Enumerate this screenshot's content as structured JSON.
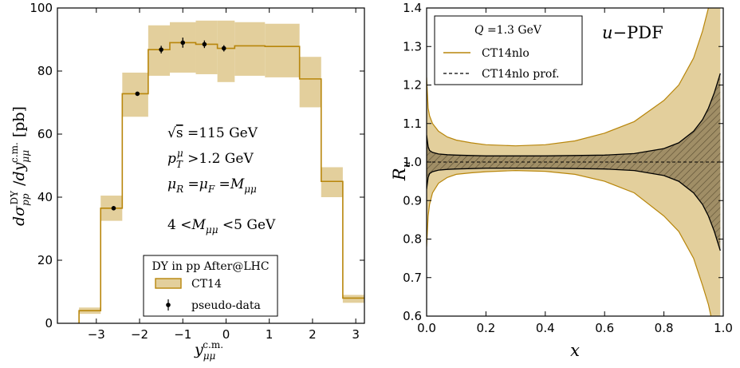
{
  "chart_data": [
    {
      "type": "line",
      "subtype": "histogram-step",
      "xlabel": "y_μμ^c.m.",
      "ylabel": "dσ_pp^DY / dy_μμ^c.m. [pb]",
      "xlim": [
        -3.9,
        3.2
      ],
      "ylim": [
        0,
        100
      ],
      "xticks": [
        -3,
        -2,
        -1,
        0,
        1,
        2,
        3
      ],
      "yticks": [
        0,
        20,
        40,
        60,
        80,
        100
      ],
      "grid": false,
      "legend_position": "bottom-right",
      "legend_title": "DY in pp After@LHC",
      "annotations": [
        "√s = 115 GeV",
        "p_T^μ > 1.2 GeV",
        "μ_R = μ_F = M_μμ",
        "4 < M_μμ < 5 GeV"
      ],
      "bins": [
        {
          "xlo": -3.4,
          "xhi": -2.9,
          "value": 4.0,
          "band": [
            3.0,
            5.0
          ]
        },
        {
          "xlo": -2.9,
          "xhi": -2.4,
          "value": 36.5,
          "band": [
            32.5,
            40.5
          ]
        },
        {
          "xlo": -2.4,
          "xhi": -1.8,
          "value": 72.8,
          "band": [
            65.5,
            79.5
          ]
        },
        {
          "xlo": -1.8,
          "xhi": -1.3,
          "value": 86.8,
          "band": [
            78.5,
            94.5
          ]
        },
        {
          "xlo": -1.3,
          "xhi": -0.7,
          "value": 89.0,
          "band": [
            79.5,
            95.5
          ]
        },
        {
          "xlo": -0.7,
          "xhi": -0.2,
          "value": 88.5,
          "band": [
            79.0,
            96.0
          ]
        },
        {
          "xlo": -0.2,
          "xhi": 0.2,
          "value": 87.2,
          "band": [
            76.5,
            96.0
          ]
        },
        {
          "xlo": 0.2,
          "xhi": 0.9,
          "value": 88.0,
          "band": [
            78.5,
            95.5
          ]
        },
        {
          "xlo": 0.9,
          "xhi": 1.7,
          "value": 87.8,
          "band": [
            78.0,
            95.0
          ]
        },
        {
          "xlo": 1.7,
          "xhi": 2.2,
          "value": 77.5,
          "band": [
            68.5,
            84.5
          ]
        },
        {
          "xlo": 2.2,
          "xhi": 2.7,
          "value": 45.0,
          "band": [
            40.0,
            49.5
          ]
        },
        {
          "xlo": 2.7,
          "xhi": 3.2,
          "value": 8.0,
          "band": [
            6.5,
            9.0
          ]
        }
      ],
      "series": [
        {
          "name": "CT14",
          "role": "band+step",
          "color": "#b8860b",
          "fill": "#e3cf9c"
        },
        {
          "name": "pseudo-data",
          "role": "points",
          "x": [
            -2.6,
            -2.05,
            -1.5,
            -1.0,
            -0.5,
            -0.05
          ],
          "y": [
            36.5,
            72.8,
            86.8,
            89.0,
            88.5,
            87.2
          ],
          "err": [
            0.5,
            0.5,
            1.2,
            1.6,
            1.2,
            1.0
          ],
          "color": "#000000"
        }
      ]
    },
    {
      "type": "line",
      "subtype": "ratio-band",
      "xlabel": "x",
      "ylabel": "R_u",
      "xlim": [
        0.0,
        1.0
      ],
      "ylim": [
        0.6,
        1.4
      ],
      "xticks": [
        0.0,
        0.2,
        0.4,
        0.6,
        0.8,
        1.0
      ],
      "yticks": [
        0.6,
        0.7,
        0.8,
        0.9,
        1.0,
        1.1,
        1.2,
        1.3,
        1.4
      ],
      "grid": false,
      "legend_position": "top-left",
      "legend_title": "Q = 1.3 GeV",
      "annotations": [
        "u−PDF"
      ],
      "series": [
        {
          "name": "CT14nlo",
          "color": "#b8860b",
          "fill": "#e3cf9c",
          "x": [
            0.0,
            0.005,
            0.01,
            0.02,
            0.04,
            0.07,
            0.1,
            0.15,
            0.2,
            0.3,
            0.4,
            0.5,
            0.6,
            0.7,
            0.8,
            0.85,
            0.9,
            0.93,
            0.95,
            0.97,
            0.99
          ],
          "upper": [
            1.22,
            1.14,
            1.12,
            1.1,
            1.08,
            1.065,
            1.057,
            1.05,
            1.045,
            1.042,
            1.045,
            1.055,
            1.075,
            1.105,
            1.16,
            1.2,
            1.27,
            1.34,
            1.4,
            1.45,
            1.5
          ],
          "lower": [
            0.78,
            0.86,
            0.89,
            0.92,
            0.945,
            0.96,
            0.968,
            0.972,
            0.975,
            0.978,
            0.976,
            0.968,
            0.95,
            0.92,
            0.86,
            0.82,
            0.75,
            0.68,
            0.63,
            0.56,
            0.5
          ]
        },
        {
          "name": "CT14nlo prof.",
          "color": "#000000",
          "dashed_center": 1.0,
          "x": [
            0.0,
            0.005,
            0.01,
            0.02,
            0.04,
            0.07,
            0.1,
            0.15,
            0.2,
            0.3,
            0.4,
            0.5,
            0.6,
            0.7,
            0.8,
            0.85,
            0.9,
            0.93,
            0.95,
            0.97,
            0.99
          ],
          "upper": [
            1.07,
            1.04,
            1.03,
            1.025,
            1.021,
            1.019,
            1.018,
            1.017,
            1.016,
            1.016,
            1.016,
            1.017,
            1.018,
            1.022,
            1.035,
            1.05,
            1.08,
            1.11,
            1.14,
            1.18,
            1.23
          ],
          "lower": [
            0.93,
            0.96,
            0.97,
            0.975,
            0.979,
            0.981,
            0.982,
            0.983,
            0.984,
            0.984,
            0.984,
            0.983,
            0.982,
            0.978,
            0.965,
            0.95,
            0.92,
            0.89,
            0.86,
            0.82,
            0.77
          ]
        }
      ]
    }
  ],
  "left_legend": {
    "title": "DY in pp After@LHC",
    "item1": "CT14",
    "item2": "pseudo-data"
  },
  "right_legend": {
    "title": "Q = 1.3 GeV",
    "item1": "CT14nlo",
    "item2": "CT14nlo prof."
  },
  "right_annotation": "u−PDF",
  "colors": {
    "band": "#e3cf9c",
    "line": "#b8860b",
    "dark": "#000000",
    "hatch_fill": "#a08e66"
  }
}
